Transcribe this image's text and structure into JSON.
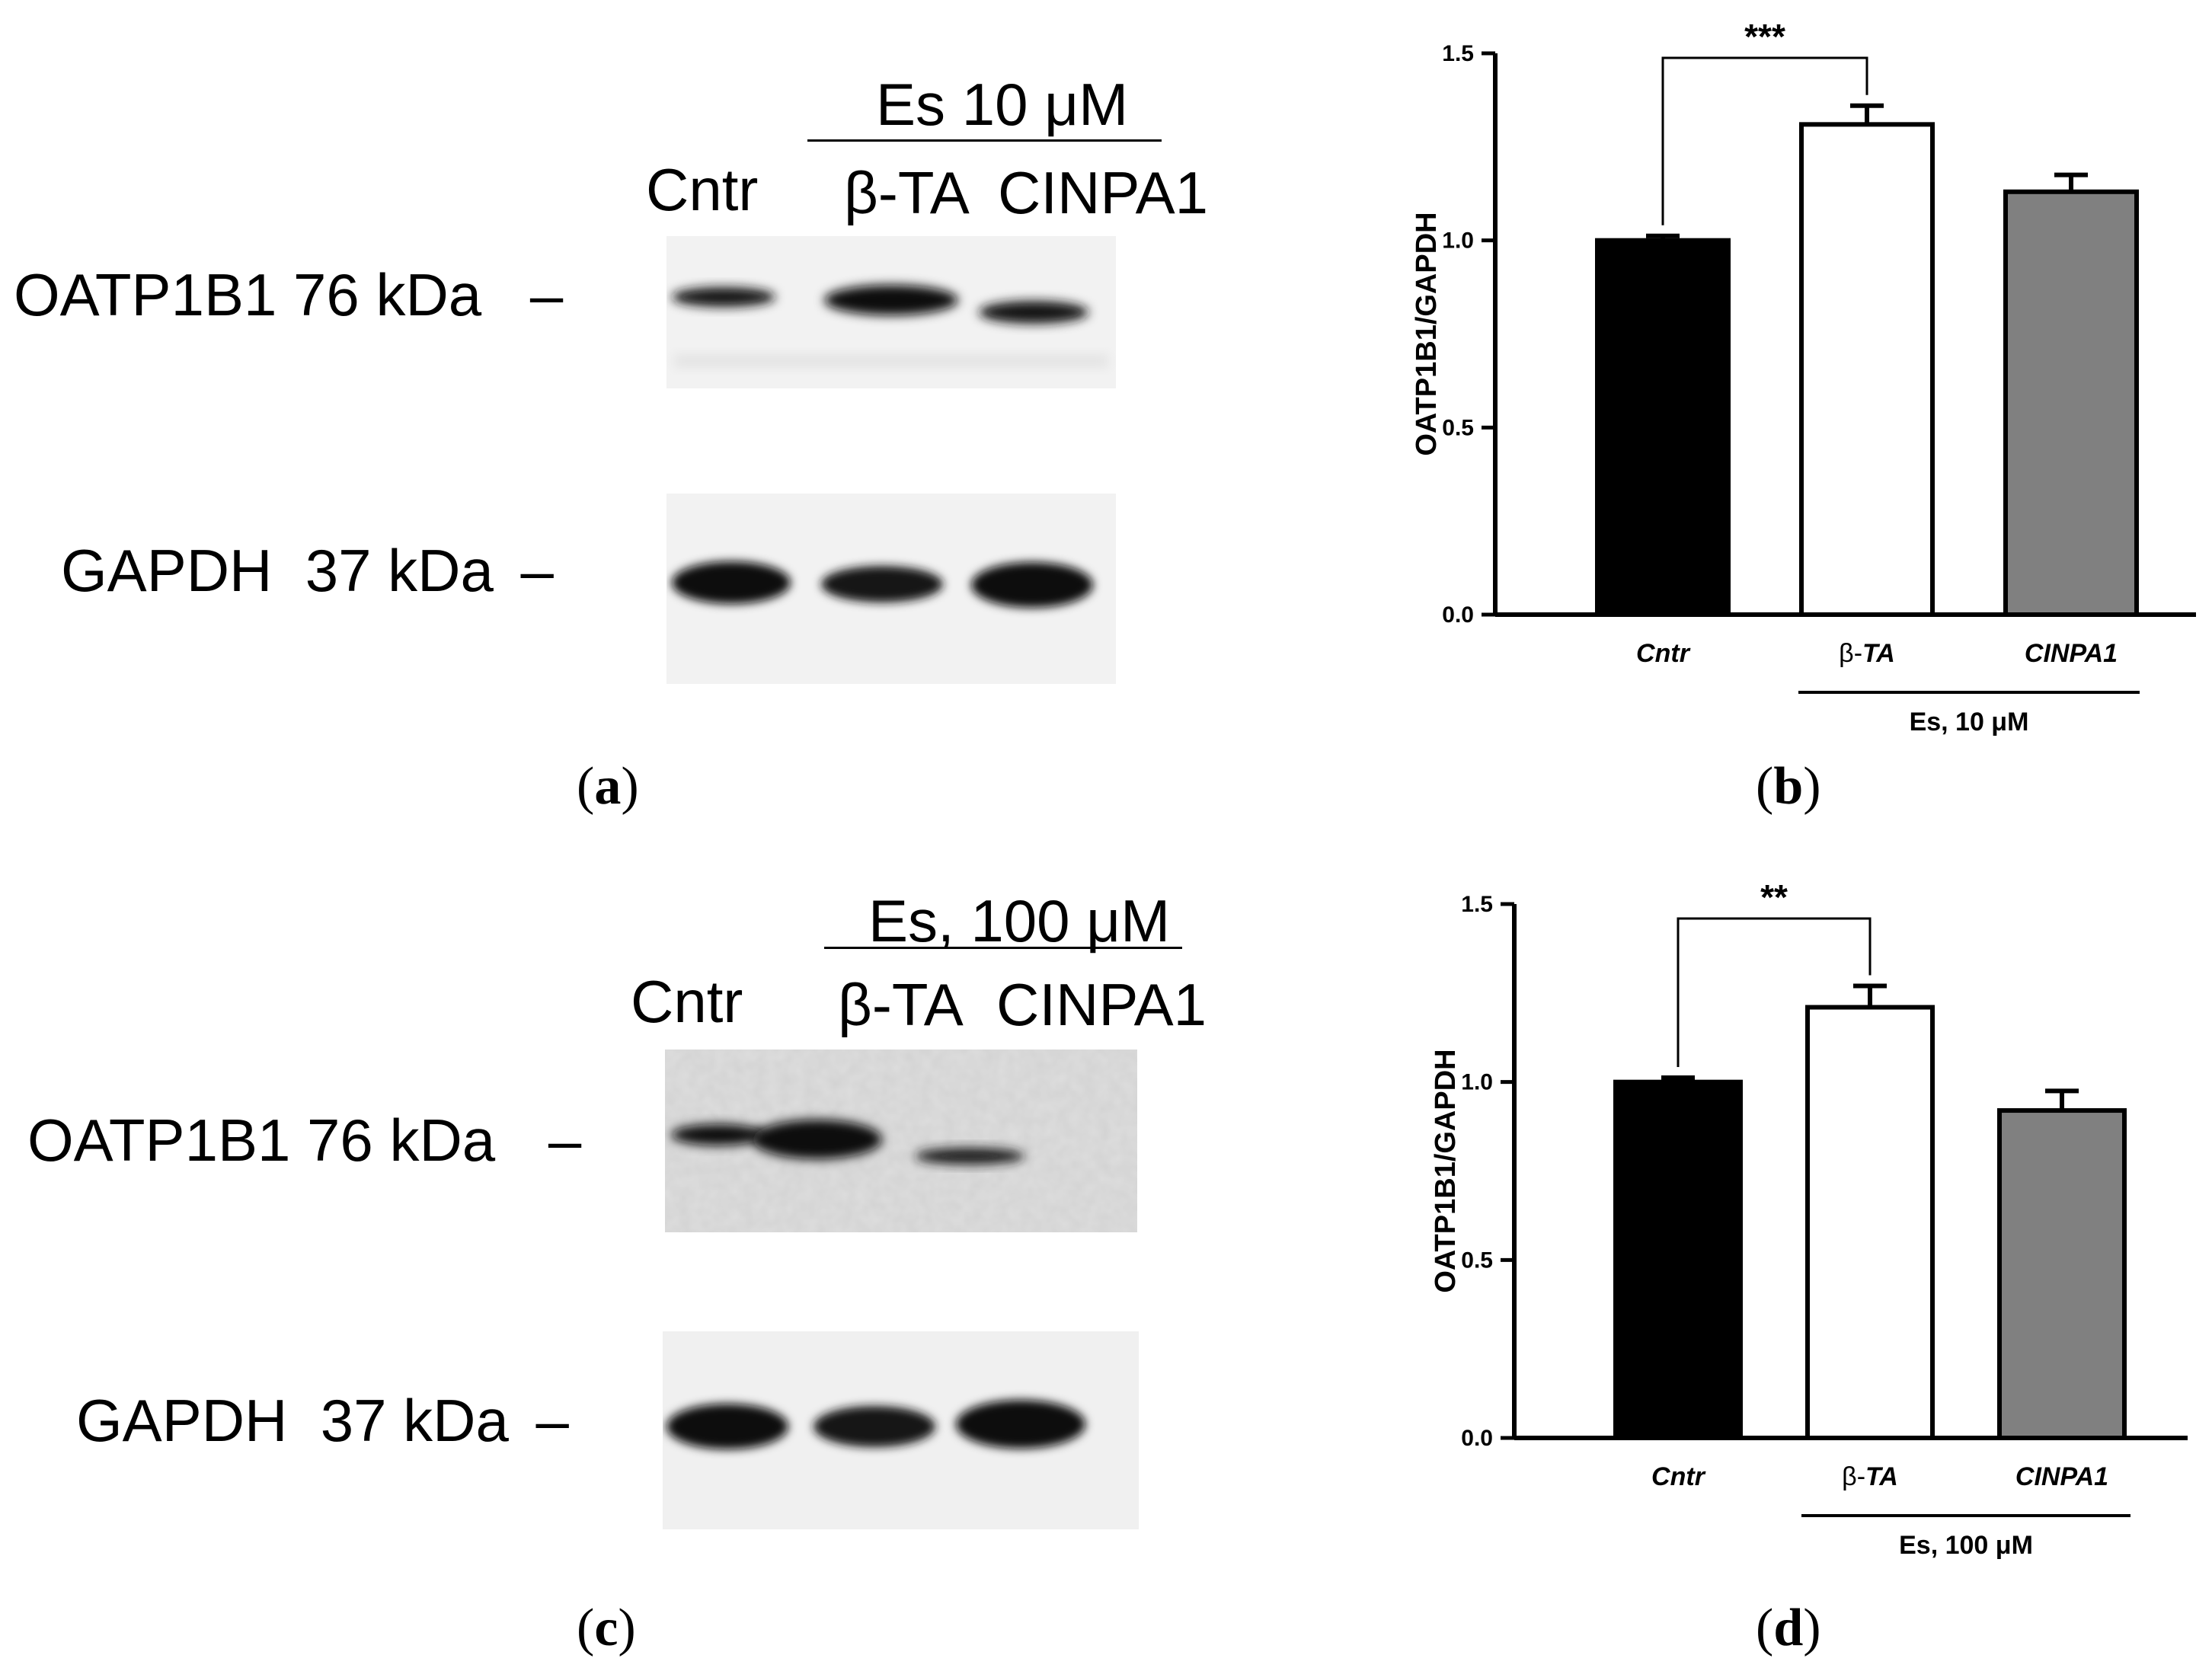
{
  "panels": {
    "a": {
      "label": "a",
      "treatment": "Es 10 μM",
      "lanes": [
        "Cntr",
        "β-TA",
        "CINPA1"
      ],
      "bands": [
        {
          "name": "OATP1B1 76 kDa",
          "marker": "–",
          "intensities": [
            0.85,
            1.0,
            0.8
          ]
        },
        {
          "name": "GAPDH  37 kDa",
          "marker": "–",
          "intensities": [
            1.0,
            0.9,
            1.0
          ]
        }
      ]
    },
    "c": {
      "label": "c",
      "treatment": "Es, 100 μM",
      "lanes": [
        "Cntr",
        "β-TA",
        "CINPA1"
      ],
      "bands": [
        {
          "name": "OATP1B1 76 kDa",
          "marker": "–",
          "intensities": [
            0.8,
            1.0,
            0.6
          ]
        },
        {
          "name": "GAPDH  37 kDa",
          "marker": "–",
          "intensities": [
            1.0,
            0.9,
            1.0
          ]
        }
      ]
    },
    "b": {
      "label": "b"
    },
    "d": {
      "label": "d"
    }
  },
  "chart_data": [
    {
      "type": "bar",
      "panel": "b",
      "categories": [
        "Cntr",
        "β-TA",
        "CINPA1"
      ],
      "category_prefix": [
        "",
        "β-",
        ""
      ],
      "category_italic": [
        "Cntr",
        "TA",
        "CINPA1"
      ],
      "values": [
        1.0,
        1.31,
        1.13
      ],
      "errors": [
        0.012,
        0.05,
        0.045
      ],
      "colors": [
        "#000000",
        "#ffffff",
        "#808080"
      ],
      "ylabel": "OATP1B1/GAPDH",
      "ylim": [
        0,
        1.5
      ],
      "yticks": [
        "0.0",
        "0.5",
        "1.0",
        "1.5"
      ],
      "group_label": "Es, 10 μM",
      "significance": {
        "from": 0,
        "to": 1,
        "text": "***"
      }
    },
    {
      "type": "bar",
      "panel": "d",
      "categories": [
        "Cntr",
        "β-TA",
        "CINPA1"
      ],
      "category_prefix": [
        "",
        "β-",
        ""
      ],
      "category_italic": [
        "Cntr",
        "TA",
        "CINPA1"
      ],
      "values": [
        1.0,
        1.21,
        0.92
      ],
      "errors": [
        0.012,
        0.06,
        0.055
      ],
      "colors": [
        "#000000",
        "#ffffff",
        "#808080"
      ],
      "ylabel": "OATP1B1/GAPDH",
      "ylim": [
        0,
        1.5
      ],
      "yticks": [
        "0.0",
        "0.5",
        "1.0",
        "1.5"
      ],
      "group_label": "Es, 100 μM",
      "significance": {
        "from": 0,
        "to": 1,
        "text": "**"
      }
    }
  ]
}
